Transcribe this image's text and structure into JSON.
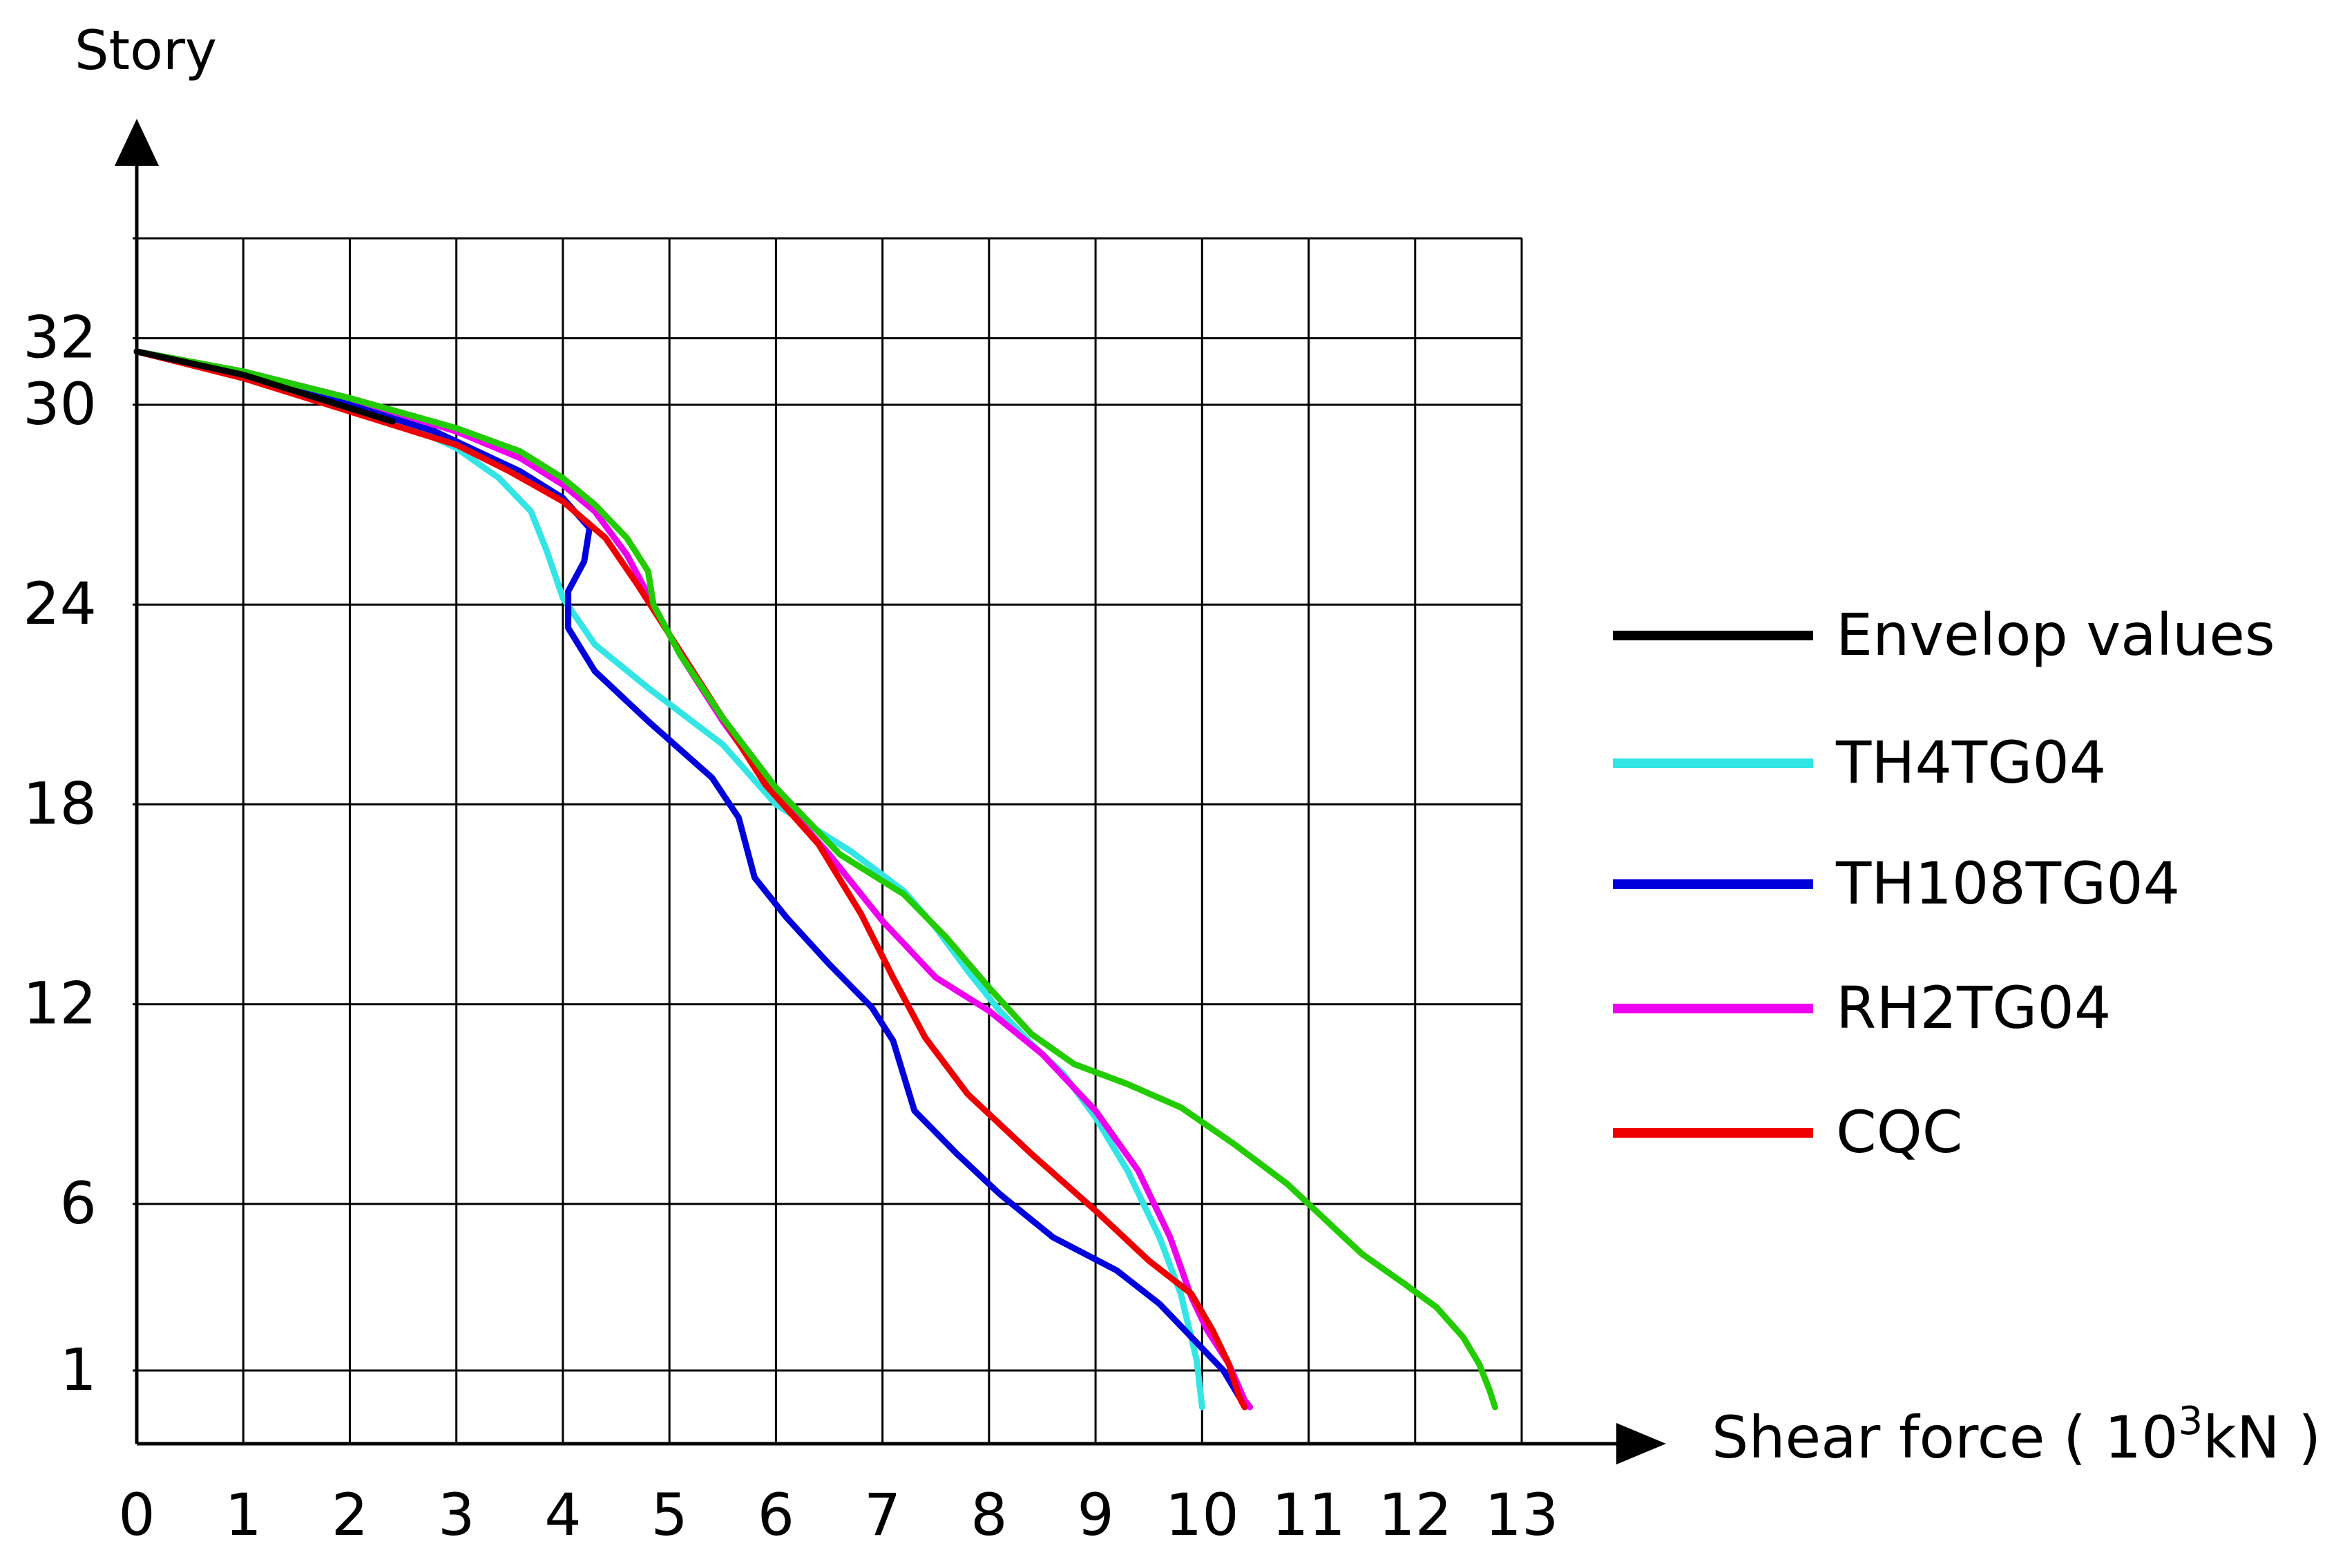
{
  "chart_data": {
    "type": "line",
    "title": "",
    "xlabel": "Shear force ( 10",
    "xlabel_sup": "3",
    "xlabel_unit": "kN )",
    "ylabel": "Story",
    "xlim": [
      0,
      13
    ],
    "ylim": [
      -1.2,
      35
    ],
    "x_ticks": [
      0,
      1,
      2,
      3,
      4,
      5,
      6,
      7,
      8,
      9,
      10,
      11,
      12,
      13
    ],
    "y_ticks": [
      1,
      6,
      12,
      18,
      24,
      30,
      32
    ],
    "grid": true,
    "legend_position": "right",
    "series": [
      {
        "name": "Envelop values",
        "color": "#000000",
        "points": [
          [
            0,
            31.6
          ],
          [
            1,
            30.9
          ],
          [
            1.8,
            30.1
          ],
          [
            2.4,
            29.5
          ]
        ]
      },
      {
        "name": "TH4TG04",
        "color": "#33e5e5",
        "points": [
          [
            0,
            31.6
          ],
          [
            1,
            30.9
          ],
          [
            2,
            30.0
          ],
          [
            2.6,
            29.3
          ],
          [
            3.0,
            28.7
          ],
          [
            3.4,
            27.8
          ],
          [
            3.7,
            26.8
          ],
          [
            3.85,
            25.6
          ],
          [
            4.0,
            24.2
          ],
          [
            4.3,
            22.8
          ],
          [
            4.8,
            21.5
          ],
          [
            5.5,
            19.8
          ],
          [
            6.0,
            18.0
          ],
          [
            6.7,
            16.6
          ],
          [
            7.2,
            15.4
          ],
          [
            7.5,
            14.3
          ],
          [
            7.8,
            13.0
          ],
          [
            8.1,
            11.8
          ],
          [
            8.4,
            10.8
          ],
          [
            8.7,
            9.9
          ],
          [
            9.0,
            8.6
          ],
          [
            9.3,
            7.0
          ],
          [
            9.6,
            5.0
          ],
          [
            9.8,
            3.3
          ],
          [
            9.95,
            1.3
          ],
          [
            10.0,
            -0.1
          ]
        ]
      },
      {
        "name": "TH108TG04",
        "color": "#0000dd",
        "points": [
          [
            0,
            31.6
          ],
          [
            1,
            30.9
          ],
          [
            2,
            30.0
          ],
          [
            2.8,
            29.2
          ],
          [
            3.6,
            28.0
          ],
          [
            4.0,
            27.2
          ],
          [
            4.25,
            26.3
          ],
          [
            4.2,
            25.3
          ],
          [
            4.05,
            24.4
          ],
          [
            4.05,
            23.3
          ],
          [
            4.3,
            22.0
          ],
          [
            4.8,
            20.5
          ],
          [
            5.4,
            18.8
          ],
          [
            5.65,
            17.6
          ],
          [
            5.8,
            15.8
          ],
          [
            6.1,
            14.6
          ],
          [
            6.5,
            13.2
          ],
          [
            6.9,
            11.9
          ],
          [
            7.1,
            10.9
          ],
          [
            7.3,
            8.8
          ],
          [
            7.7,
            7.5
          ],
          [
            8.1,
            6.3
          ],
          [
            8.6,
            5.0
          ],
          [
            9.2,
            4.0
          ],
          [
            9.6,
            3.0
          ],
          [
            9.9,
            2.0
          ],
          [
            10.2,
            1.0
          ],
          [
            10.35,
            0.2
          ],
          [
            10.4,
            -0.1
          ]
        ]
      },
      {
        "name": "RH2TG04",
        "color": "#ee00ee",
        "points": [
          [
            0,
            31.6
          ],
          [
            1,
            31.0
          ],
          [
            2,
            30.2
          ],
          [
            3,
            29.2
          ],
          [
            3.6,
            28.4
          ],
          [
            4.0,
            27.6
          ],
          [
            4.3,
            26.8
          ],
          [
            4.6,
            25.5
          ],
          [
            4.85,
            24.0
          ],
          [
            5.1,
            22.5
          ],
          [
            5.5,
            20.5
          ],
          [
            6.0,
            18.3
          ],
          [
            6.5,
            16.5
          ],
          [
            7.0,
            14.5
          ],
          [
            7.5,
            12.8
          ],
          [
            8.0,
            11.8
          ],
          [
            8.5,
            10.5
          ],
          [
            9.0,
            8.8
          ],
          [
            9.4,
            7.0
          ],
          [
            9.7,
            5.0
          ],
          [
            9.9,
            3.2
          ],
          [
            10.05,
            2.2
          ],
          [
            10.25,
            1.2
          ],
          [
            10.4,
            0.1
          ],
          [
            10.45,
            -0.1
          ]
        ]
      },
      {
        "name": "CQC",
        "color": "#ee0000",
        "points": [
          [
            0,
            31.6
          ],
          [
            1,
            30.8
          ],
          [
            1.8,
            30.0
          ],
          [
            2.4,
            29.4
          ],
          [
            3.0,
            28.8
          ],
          [
            3.5,
            28.0
          ],
          [
            4.0,
            27.1
          ],
          [
            4.4,
            26.0
          ],
          [
            4.7,
            24.6
          ],
          [
            5.1,
            22.6
          ],
          [
            5.5,
            20.6
          ],
          [
            5.9,
            18.6
          ],
          [
            6.4,
            16.8
          ],
          [
            6.8,
            14.7
          ],
          [
            7.1,
            12.8
          ],
          [
            7.4,
            11.0
          ],
          [
            7.8,
            9.3
          ],
          [
            8.4,
            7.5
          ],
          [
            9.0,
            5.8
          ],
          [
            9.5,
            4.3
          ],
          [
            9.9,
            3.3
          ],
          [
            10.1,
            2.2
          ],
          [
            10.25,
            1.2
          ],
          [
            10.35,
            0.2
          ],
          [
            10.4,
            -0.1
          ]
        ]
      },
      {
        "name": "",
        "color": "#22cc00",
        "points": [
          [
            0,
            31.6
          ],
          [
            1,
            31.0
          ],
          [
            2,
            30.2
          ],
          [
            3,
            29.3
          ],
          [
            3.6,
            28.6
          ],
          [
            4.0,
            27.8
          ],
          [
            4.3,
            27.0
          ],
          [
            4.6,
            26.0
          ],
          [
            4.8,
            25.0
          ],
          [
            4.85,
            24.0
          ],
          [
            5.1,
            22.5
          ],
          [
            5.5,
            20.6
          ],
          [
            6.0,
            18.5
          ],
          [
            6.6,
            16.5
          ],
          [
            7.2,
            15.3
          ],
          [
            7.6,
            14.0
          ],
          [
            8.0,
            12.5
          ],
          [
            8.4,
            11.1
          ],
          [
            8.8,
            10.2
          ],
          [
            9.3,
            9.6
          ],
          [
            9.8,
            8.9
          ],
          [
            10.3,
            7.8
          ],
          [
            10.8,
            6.6
          ],
          [
            11.2,
            5.4
          ],
          [
            11.5,
            4.5
          ],
          [
            11.9,
            3.6
          ],
          [
            12.2,
            2.9
          ],
          [
            12.45,
            2.0
          ],
          [
            12.6,
            1.2
          ],
          [
            12.7,
            0.4
          ],
          [
            12.75,
            -0.1
          ]
        ]
      }
    ]
  }
}
